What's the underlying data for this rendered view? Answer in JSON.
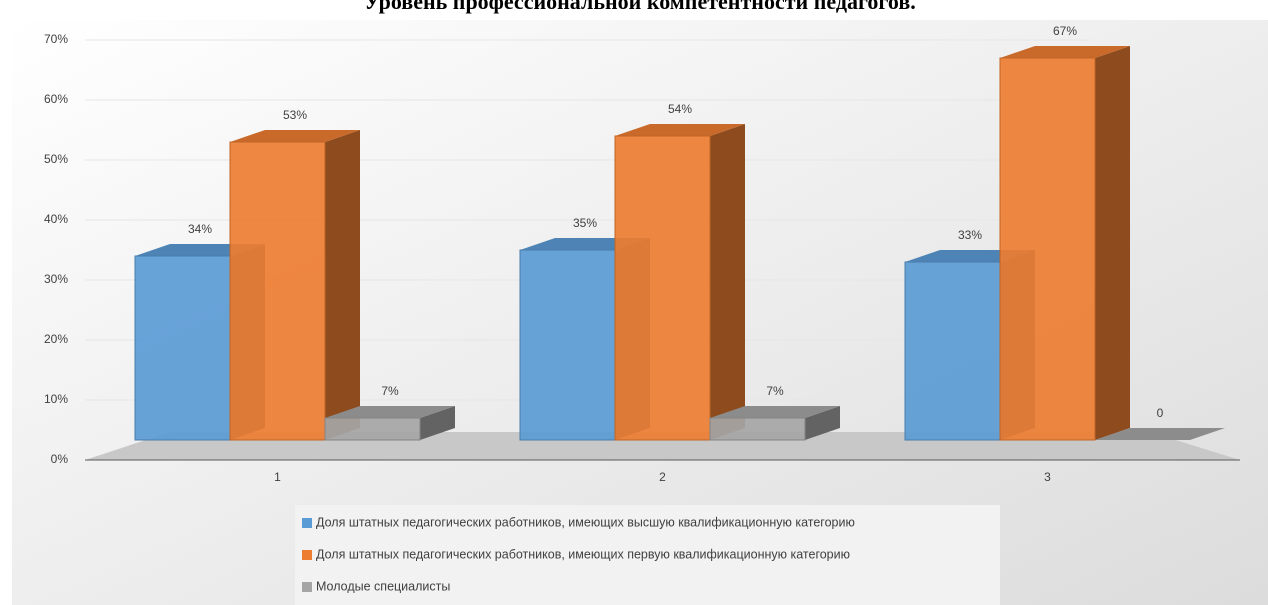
{
  "chart_data": {
    "type": "bar3d",
    "title": "Уровень профессиональной компетентности педагогов.",
    "categories": [
      "1",
      "2",
      "3"
    ],
    "series": [
      {
        "name": "Доля штатных педагогических работников, имеющих высшую квалификационную категорию",
        "color": "#5b9bd5",
        "values": [
          34,
          35,
          33
        ],
        "value_labels": [
          "34%",
          "35%",
          "33%"
        ]
      },
      {
        "name": "Доля штатных педагогических работников, имеющих первую квалификационную категорию",
        "color": "#ed7d31",
        "values": [
          53,
          54,
          67
        ],
        "value_labels": [
          "53%",
          "54%",
          "67%"
        ]
      },
      {
        "name": "Молодые специалисты",
        "color": "#a5a5a5",
        "values": [
          7,
          7,
          0
        ],
        "value_labels": [
          "7%",
          "7%",
          "0"
        ]
      }
    ],
    "ylim": [
      0,
      70
    ],
    "yticks": [
      {
        "value": 0,
        "label": "0%"
      },
      {
        "value": 10,
        "label": "10%"
      },
      {
        "value": 20,
        "label": "20%"
      },
      {
        "value": 30,
        "label": "30%"
      },
      {
        "value": 40,
        "label": "40%"
      },
      {
        "value": 50,
        "label": "50%"
      },
      {
        "value": 60,
        "label": "60%"
      },
      {
        "value": 70,
        "label": "70%"
      }
    ],
    "grid": true
  }
}
